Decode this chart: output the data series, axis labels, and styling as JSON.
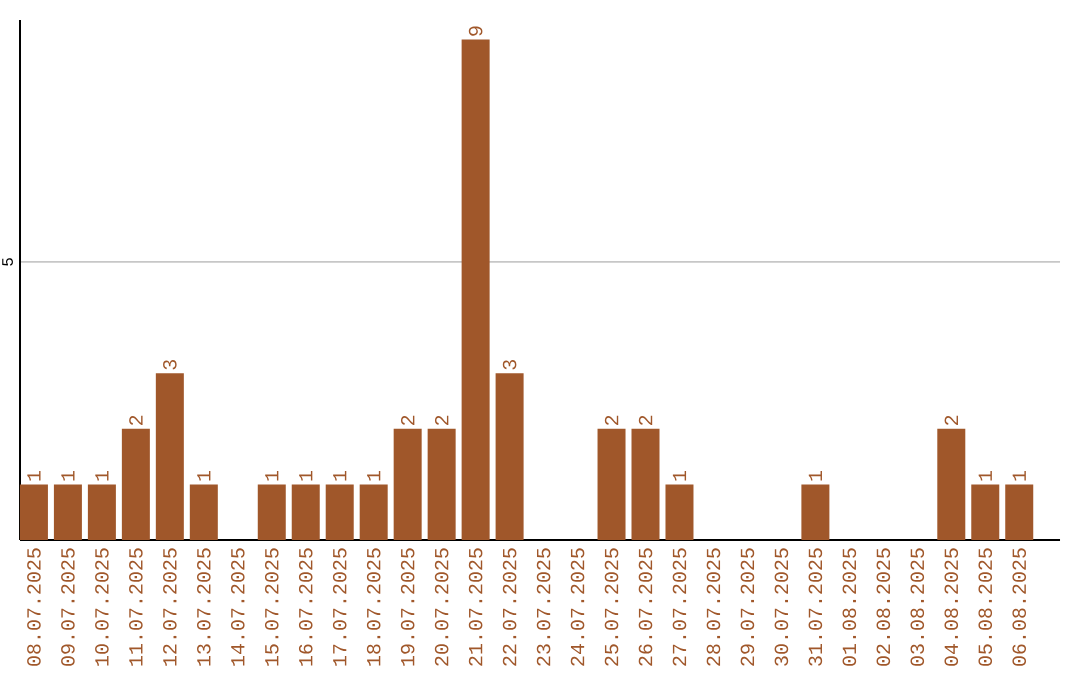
{
  "chart_data": {
    "type": "bar",
    "categories": [
      "08.07.2025",
      "09.07.2025",
      "10.07.2025",
      "11.07.2025",
      "12.07.2025",
      "13.07.2025",
      "14.07.2025",
      "15.07.2025",
      "16.07.2025",
      "17.07.2025",
      "18.07.2025",
      "19.07.2025",
      "20.07.2025",
      "21.07.2025",
      "22.07.2025",
      "23.07.2025",
      "24.07.2025",
      "25.07.2025",
      "26.07.2025",
      "27.07.2025",
      "28.07.2025",
      "29.07.2025",
      "30.07.2025",
      "31.07.2025",
      "01.08.2025",
      "02.08.2025",
      "03.08.2025",
      "04.08.2025",
      "05.08.2025",
      "06.08.2025"
    ],
    "values": [
      1,
      1,
      1,
      2,
      3,
      1,
      0,
      1,
      1,
      1,
      1,
      2,
      2,
      9,
      3,
      0,
      0,
      2,
      2,
      1,
      0,
      0,
      0,
      1,
      0,
      0,
      0,
      2,
      1,
      1
    ],
    "value_labels": [
      "1",
      "1",
      "1",
      "2",
      "3",
      "1",
      null,
      "1",
      "1",
      "1",
      "1",
      "2",
      "2",
      "9",
      "3",
      null,
      null,
      "2",
      "2",
      "1",
      null,
      null,
      null,
      "1",
      null,
      null,
      null,
      "2",
      "1",
      "1"
    ],
    "color": "#a0572a",
    "ylim": [
      0,
      9.35
    ],
    "yticks": [
      5
    ],
    "grid": "y"
  }
}
